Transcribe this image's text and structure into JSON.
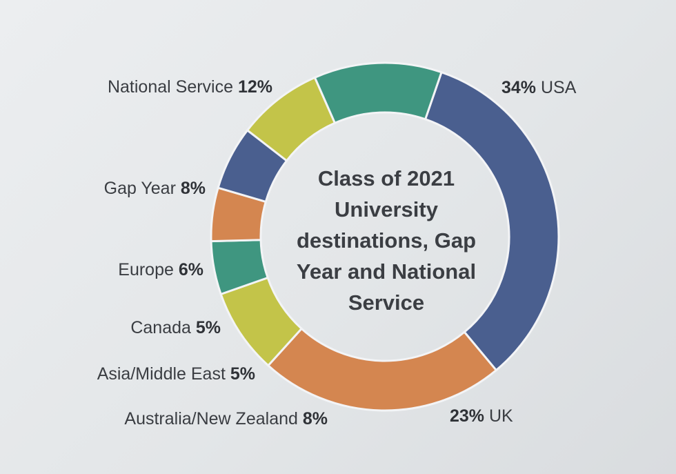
{
  "chart_data": {
    "type": "pie",
    "variant": "donut",
    "title": "Class of 2021 University destinations, Gap Year and National Service",
    "slices": [
      {
        "name": "USA",
        "value": 34,
        "pct_label": "34%",
        "color": "#4a5f8f"
      },
      {
        "name": "UK",
        "value": 23,
        "pct_label": "23%",
        "color": "#d48650"
      },
      {
        "name": "Australia/New Zealand",
        "value": 8,
        "pct_label": "8%",
        "color": "#c3c449"
      },
      {
        "name": "Asia/Middle East",
        "value": 5,
        "pct_label": "5%",
        "color": "#3f9680"
      },
      {
        "name": "Canada",
        "value": 5,
        "pct_label": "5%",
        "color": "#d48650"
      },
      {
        "name": "Europe",
        "value": 6,
        "pct_label": "6%",
        "color": "#4a5f8f"
      },
      {
        "name": "Gap Year",
        "value": 8,
        "pct_label": "8%",
        "color": "#c3c449"
      },
      {
        "name": "National Service",
        "value": 12,
        "pct_label": "12%",
        "color": "#3f9680"
      }
    ]
  }
}
